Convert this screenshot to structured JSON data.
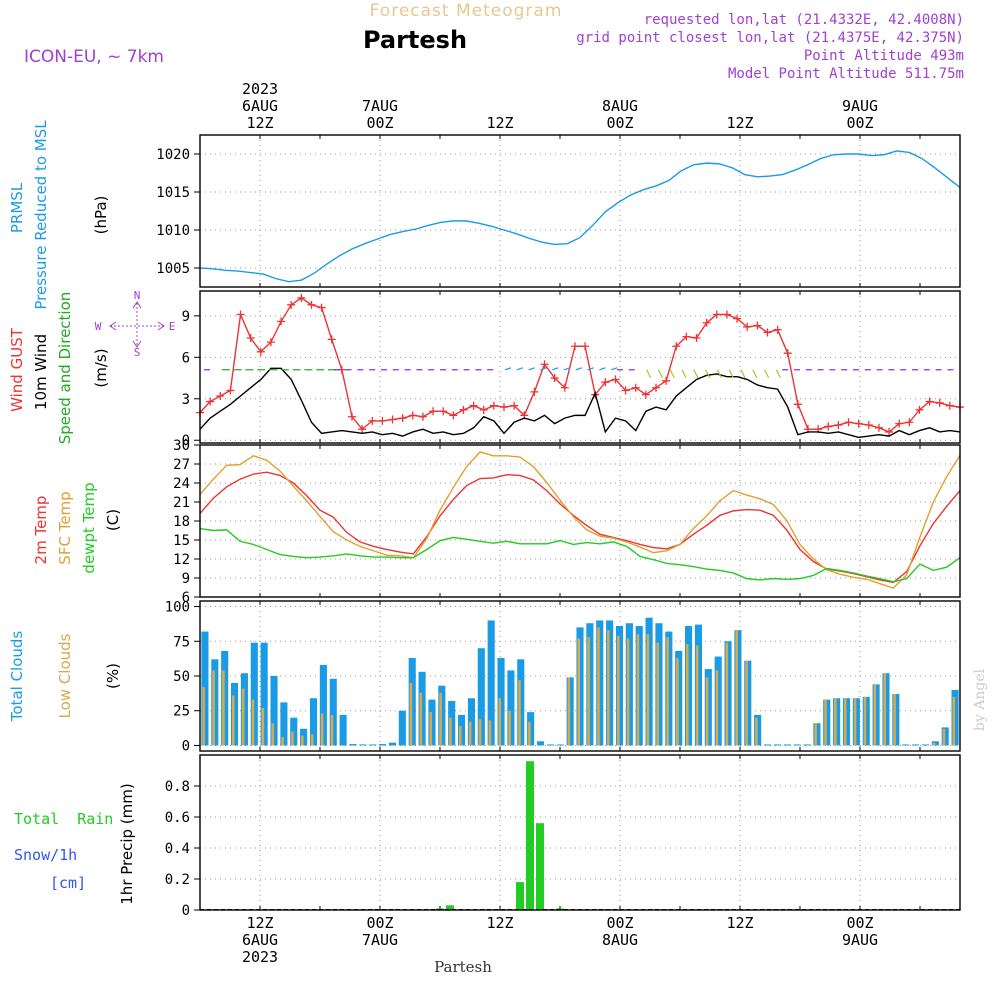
{
  "header": {
    "product_title": "Forecast Meteogram",
    "location_name": "Partesh",
    "model_name": "ICON-EU, ~ 7km",
    "requested_lonlat": "requested lon,lat (21.4332E, 42.4008N)",
    "grid_lonlat": "grid point closest lon,lat (21.4375E, 42.375N)",
    "point_altitude": "Point Altitude 493m",
    "model_point_altitude": "Model Point Altitude 511.75m"
  },
  "footer": {
    "location_name": "Partesh",
    "credit": "by Angel"
  },
  "time_axis": {
    "top_labels": [
      {
        "slot": 0,
        "lines": [
          "2023",
          "6AUG",
          "12Z"
        ]
      },
      {
        "slot": 1,
        "lines": [
          "7AUG",
          "00Z"
        ]
      },
      {
        "slot": 2,
        "lines": [
          "12Z"
        ]
      },
      {
        "slot": 3,
        "lines": [
          "8AUG",
          "00Z"
        ]
      },
      {
        "slot": 4,
        "lines": [
          "12Z"
        ]
      },
      {
        "slot": 5,
        "lines": [
          "9AUG",
          "00Z"
        ]
      }
    ],
    "bottom_labels": [
      {
        "slot": 0,
        "lines": [
          "12Z",
          "6AUG",
          "2023"
        ]
      },
      {
        "slot": 1,
        "lines": [
          "00Z",
          "7AUG"
        ]
      },
      {
        "slot": 2,
        "lines": [
          "12Z"
        ]
      },
      {
        "slot": 3,
        "lines": [
          "00Z",
          "8AUG"
        ]
      },
      {
        "slot": 4,
        "lines": [
          "12Z"
        ]
      },
      {
        "slot": 5,
        "lines": [
          "00Z",
          "9AUG"
        ]
      }
    ]
  },
  "colors": {
    "pressure": "#1a9be6",
    "gust": "#ee3333",
    "wind": "#000000",
    "wind_label": "#22aa22",
    "t2m": "#ee3333",
    "sfc": "#e0a030",
    "dewpt": "#22cc22",
    "total_clouds": "#1a9be6",
    "low_clouds": "#d6aa50",
    "rain": "#22cc22",
    "snow": "#3355ee",
    "meta": "#a040d0",
    "title_faint": "#e8c890",
    "credit": "#cccccc"
  },
  "chart_data": [
    {
      "id": "pressure",
      "type": "line",
      "panel_labels": [
        {
          "text": "PRMSL",
          "color": "#1a9be6"
        },
        {
          "text": "Pressure Reduced to MSL",
          "color": "#1a9be6"
        },
        {
          "text": "(hPa)",
          "color": "#000000"
        }
      ],
      "ylim": [
        1002.5,
        1022.5
      ],
      "yticks": [
        1005,
        1010,
        1015,
        1020
      ],
      "series": [
        {
          "values": [
            1005,
            1004.9,
            1004.7,
            1004.6,
            1004.4,
            1004.2,
            1003.6,
            1003.2,
            1003.4,
            1004.3,
            1005.5,
            1006.6,
            1007.5,
            1008.2,
            1008.8,
            1009.4,
            1009.8,
            1010.1,
            1010.6,
            1011,
            1011.2,
            1011.2,
            1010.9,
            1010.5,
            1010,
            1009.5,
            1008.9,
            1008.4,
            1008.1,
            1008.2,
            1009,
            1010.6,
            1012.4,
            1013.6,
            1014.6,
            1015.3,
            1015.8,
            1016.5,
            1017.8,
            1018.6,
            1018.8,
            1018.7,
            1018.2,
            1017.3,
            1017,
            1017.1,
            1017.3,
            1017.9,
            1018.6,
            1019.4,
            1019.9,
            1020,
            1020,
            1019.8,
            1019.9,
            1020.4,
            1020.2,
            1019.4,
            1018.2,
            1016.9,
            1015.6
          ]
        }
      ]
    },
    {
      "id": "wind",
      "type": "line",
      "panel_labels": [
        {
          "text": "Wind GUST",
          "color": "#ee3333"
        },
        {
          "text": "10m Wind",
          "color": "#000000"
        },
        {
          "text": "Speed and Direction",
          "color": "#22aa22"
        },
        {
          "text": "(m/s)",
          "color": "#000000"
        }
      ],
      "compass": {
        "n": "N",
        "s": "S",
        "w": "W",
        "e": "E"
      },
      "ylim": [
        -0.2,
        10.8
      ],
      "yticks": [
        0,
        3,
        6,
        9
      ],
      "series": [
        {
          "name": "Wind GUST",
          "color": "#ee3333",
          "marker": "plus",
          "values": [
            2,
            2.8,
            3.2,
            3.6,
            9.1,
            7.4,
            6.4,
            7.1,
            8.6,
            9.8,
            10.3,
            9.8,
            9.6,
            7.3,
            5.1,
            1.7,
            0.8,
            1.4,
            1.4,
            1.5,
            1.6,
            1.8,
            1.7,
            2.1,
            2.1,
            1.8,
            2.2,
            2.5,
            2.2,
            2.5,
            2.4,
            2.5,
            1.8,
            3.5,
            5.5,
            4.5,
            3.8,
            6.8,
            6.8,
            3.3,
            4.2,
            4.4,
            3.6,
            3.8,
            3.3,
            3.8,
            4.3,
            6.8,
            7.5,
            7.4,
            8.5,
            9.1,
            9.1,
            8.8,
            8.2,
            8.3,
            7.8,
            8,
            6.3,
            2.6,
            0.8,
            0.8,
            1,
            1.1,
            1.3,
            1.2,
            1.1,
            0.9,
            0.6,
            1.2,
            1.3,
            2.2,
            2.8,
            2.7,
            2.5,
            2.4
          ]
        },
        {
          "name": "10m Wind",
          "color": "#000000",
          "marker": "none",
          "values": [
            0.8,
            1.6,
            2.1,
            2.6,
            3.2,
            3.8,
            4.4,
            5.2,
            5.2,
            4.4,
            2.9,
            1.3,
            0.5,
            0.6,
            0.7,
            0.6,
            0.5,
            0.6,
            0.4,
            0.5,
            0.3,
            0.6,
            0.8,
            0.5,
            0.6,
            0.4,
            0.5,
            0.9,
            1.7,
            1.4,
            0.5,
            1.3,
            1.6,
            1.4,
            1.8,
            1.2,
            1.6,
            1.8,
            1.8,
            3.4,
            0.6,
            1.6,
            1.4,
            0.7,
            2.1,
            2.4,
            2.2,
            3.2,
            3.8,
            4.4,
            4.7,
            4.8,
            4.6,
            4.6,
            4.4,
            4,
            3.8,
            3.7,
            2.4,
            0.4,
            0.6,
            0.6,
            0.5,
            0.6,
            0.4,
            0.2,
            0.3,
            0.4,
            0.3,
            0.7,
            0.4,
            0.7,
            0.9,
            0.6,
            0.7,
            0.6
          ]
        }
      ]
    },
    {
      "id": "temperature",
      "type": "line",
      "panel_labels": [
        {
          "text": "2m Temp",
          "color": "#ee3333"
        },
        {
          "text": "SFC Temp",
          "color": "#e0a030"
        },
        {
          "text": "dewpt Temp",
          "color": "#22cc22"
        },
        {
          "text": "(C)",
          "color": "#000000"
        }
      ],
      "ylim": [
        6,
        30
      ],
      "yticks": [
        6,
        9,
        12,
        15,
        18,
        21,
        24,
        27,
        30
      ],
      "series": [
        {
          "name": "2m Temp",
          "color": "#ee3333",
          "values": [
            19.2,
            21.6,
            23.4,
            24.6,
            25.4,
            25.7,
            25.2,
            24,
            22,
            19.7,
            18.6,
            16.2,
            14.7,
            14,
            13.5,
            13.1,
            12.8,
            15.5,
            18.8,
            21.4,
            23.6,
            24.7,
            24.8,
            25.3,
            25.2,
            24.5,
            22.8,
            20.7,
            18.9,
            17.3,
            15.9,
            15.4,
            14.9,
            14.3,
            13.8,
            13.6,
            14.3,
            15.9,
            17.3,
            18.9,
            19.6,
            19.8,
            19.7,
            18.9,
            16.6,
            13.5,
            11.6,
            10.4,
            10.1,
            9.7,
            9.2,
            8.7,
            8.3,
            10,
            14.1,
            17.6,
            20.3,
            22.8
          ]
        },
        {
          "name": "SFC Temp",
          "color": "#e0a030",
          "values": [
            22.2,
            24.6,
            26.8,
            26.9,
            28.3,
            27.6,
            25.9,
            23.5,
            21.2,
            18.7,
            16.3,
            15,
            14,
            13.3,
            12.6,
            12.5,
            12.2,
            15.2,
            19.7,
            23.3,
            26.6,
            28.9,
            28.3,
            28.3,
            28.1,
            26.6,
            24.1,
            21.3,
            18.7,
            16.6,
            15.6,
            15.3,
            14.7,
            13.9,
            13,
            13.3,
            14.3,
            16.8,
            18.8,
            21.2,
            22.8,
            22.1,
            21.5,
            20.6,
            18.1,
            14.3,
            12,
            10.3,
            9.6,
            9.1,
            8.8,
            8.1,
            7.4,
            9.5,
            15.5,
            21,
            25,
            28.4
          ]
        },
        {
          "name": "dewpt Temp",
          "color": "#22cc22",
          "values": [
            16.8,
            16.5,
            16.6,
            14.8,
            14.3,
            13.5,
            12.7,
            12.4,
            12.2,
            12.3,
            12.5,
            12.8,
            12.5,
            12.3,
            12.3,
            12.2,
            12.2,
            13.5,
            14.9,
            15.4,
            15.1,
            14.8,
            14.5,
            14.8,
            14.4,
            14.4,
            14.4,
            14.9,
            14.3,
            14.6,
            14.4,
            14.7,
            14,
            12.4,
            11.9,
            11.3,
            11.1,
            10.8,
            10.4,
            10.2,
            9.8,
            8.9,
            8.7,
            8.9,
            8.8,
            8.9,
            9.4,
            10.5,
            10.2,
            9.8,
            9.3,
            8.9,
            8.4,
            8.9,
            11.2,
            10.2,
            10.7,
            12.2
          ]
        }
      ]
    },
    {
      "id": "clouds",
      "type": "bar",
      "panel_labels": [
        {
          "text": "Total Clouds",
          "color": "#1a9be6"
        },
        {
          "text": "Low Clouds",
          "color": "#d6aa50"
        },
        {
          "text": "(%)",
          "color": "#000000"
        }
      ],
      "ylim": [
        -4,
        104
      ],
      "yticks": [
        0,
        25,
        50,
        75,
        100
      ],
      "series": [
        {
          "name": "Total Clouds",
          "color": "#1a9be6",
          "values": [
            82,
            62,
            68,
            45,
            52,
            74,
            74,
            50,
            31,
            20,
            12,
            34,
            58,
            48,
            22,
            1,
            0,
            0,
            1,
            2,
            25,
            63,
            53,
            33,
            43,
            32,
            22,
            34,
            70,
            90,
            63,
            54,
            62,
            24,
            3,
            0,
            0,
            49,
            85,
            88,
            90,
            90,
            86,
            88,
            86,
            92,
            88,
            82,
            68,
            86,
            87,
            55,
            64,
            75,
            83,
            61,
            22,
            0,
            0,
            0,
            0,
            0,
            16,
            33,
            34,
            34,
            34,
            35,
            44,
            52,
            37,
            0,
            0,
            0,
            3,
            13,
            40
          ]
        },
        {
          "name": "Low Clouds",
          "color": "#d6aa50",
          "values": [
            42,
            54,
            54,
            36,
            41,
            33,
            27,
            16,
            6,
            10,
            7,
            8,
            23,
            22,
            0,
            0,
            0,
            0,
            0,
            0,
            0,
            45,
            38,
            24,
            38,
            20,
            14,
            17,
            19,
            18,
            34,
            25,
            47,
            17,
            0,
            0,
            0,
            49,
            77,
            78,
            85,
            83,
            79,
            77,
            80,
            80,
            74,
            78,
            63,
            73,
            72,
            49,
            54,
            74,
            83,
            61,
            20,
            0,
            0,
            0,
            0,
            0,
            16,
            33,
            34,
            34,
            34,
            35,
            44,
            52,
            37,
            0,
            0,
            0,
            2,
            12,
            35
          ]
        }
      ]
    },
    {
      "id": "precip",
      "type": "bar",
      "panel_labels": [
        {
          "text": "1hr Precip (mm)",
          "color": "#000000"
        }
      ],
      "side_labels": [
        {
          "text": "Total  Rain",
          "color": "#22cc22"
        },
        {
          "text": "Snow/1h",
          "color": "#3355ee"
        },
        {
          "text": "[cm]",
          "color": "#3355ee"
        }
      ],
      "ylim": [
        0,
        1.0
      ],
      "yticks": [
        0,
        0.2,
        0.4,
        0.6,
        0.8
      ],
      "series": [
        {
          "name": "Total Rain",
          "color": "#22cc22",
          "x_hours": [
            24,
            25,
            32,
            33,
            34,
            36
          ],
          "values": [
            0.01,
            0.03,
            0.18,
            0.96,
            0.56,
            0.01
          ]
        }
      ]
    }
  ]
}
